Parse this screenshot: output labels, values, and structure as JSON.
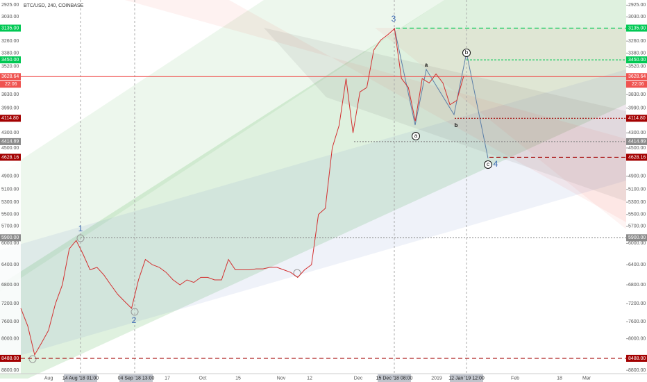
{
  "header": {
    "symbol": "BTC/USD, 240, COINBASE"
  },
  "chart_data": {
    "type": "line",
    "log_scale": true,
    "inverted": true,
    "ylim": [
      2880,
      8890
    ],
    "yticks": [
      {
        "value": 2925,
        "label": "2925.00"
      },
      {
        "value": 3030,
        "label": "3030.00"
      },
      {
        "value": 3260,
        "label": "3260.00"
      },
      {
        "value": 3380,
        "label": "3380.00"
      },
      {
        "value": 3520,
        "label": "3520.00"
      },
      {
        "value": 3830,
        "label": "3830.00"
      },
      {
        "value": 3990,
        "label": "3990.00"
      },
      {
        "value": 4300,
        "label": "4300.00"
      },
      {
        "value": 4500,
        "label": "4500.00"
      },
      {
        "value": 4900,
        "label": "4900.00"
      },
      {
        "value": 5100,
        "label": "5100.00"
      },
      {
        "value": 5300,
        "label": "5300.00"
      },
      {
        "value": 5500,
        "label": "5500.00"
      },
      {
        "value": 5700,
        "label": "5700.00"
      },
      {
        "value": 6000,
        "label": "6000.00"
      },
      {
        "value": 6400,
        "label": "6400.00"
      },
      {
        "value": 6800,
        "label": "6800.00"
      },
      {
        "value": 7200,
        "label": "7200.00"
      },
      {
        "value": 7600,
        "label": "7600.00"
      },
      {
        "value": 8000,
        "label": "8000.00"
      },
      {
        "value": 8800,
        "label": "8800.00"
      }
    ],
    "price_markers": [
      {
        "value": 3135,
        "label": "3135.00",
        "color": "#00c853"
      },
      {
        "value": 3450,
        "label": "3450.00",
        "color": "#00c853"
      },
      {
        "value": 3628.64,
        "label": "3628.64",
        "color": "#ef5350",
        "countdown": "22:06"
      },
      {
        "value": 4114.8,
        "label": "4114.80",
        "color": "#a30000"
      },
      {
        "value": 4414.89,
        "label": "4414.89",
        "color": "#8a8a8a"
      },
      {
        "value": 4628.16,
        "label": "4628.16",
        "color": "#a30000"
      },
      {
        "value": 5900,
        "label": "5900.00",
        "color": "#8a8a8a"
      },
      {
        "value": 8488,
        "label": "8488.00",
        "color": "#a30000"
      }
    ],
    "x_labels": [
      {
        "label": "Aug"
      },
      {
        "label": "14 Aug '18  01:00",
        "highlight": true
      },
      {
        "label": "04 Sep '18  13:00",
        "highlight": true
      },
      {
        "label": "17"
      },
      {
        "label": "Oct"
      },
      {
        "label": "15"
      },
      {
        "label": "Nov"
      },
      {
        "label": "12"
      },
      {
        "label": "Dec"
      },
      {
        "label": "15 Dec '18  08:00",
        "highlight": true
      },
      {
        "label": "2019"
      },
      {
        "label": "12 Jan '19  12:00",
        "highlight": true
      },
      {
        "label": "Feb"
      },
      {
        "label": "18"
      },
      {
        "label": "Mar"
      }
    ],
    "series": [
      {
        "color": "#d32f2f",
        "values": [
          7300,
          7700,
          8400,
          8100,
          7800,
          7200,
          6800,
          6100,
          5950,
          6200,
          6500,
          6450,
          6600,
          6800,
          7000,
          7150,
          7300,
          6700,
          6300,
          6400,
          6450,
          6550,
          6700,
          6800,
          6700,
          6750,
          6650,
          6650,
          6700,
          6700,
          6300,
          6500,
          6500,
          6500,
          6480,
          6480,
          6450,
          6450,
          6500,
          6550,
          6650,
          6500,
          6400,
          5500,
          5400,
          4500,
          4200,
          3650,
          4300,
          3800,
          3750,
          3350,
          3250,
          3200,
          3140,
          3650,
          3750,
          4150,
          3650,
          3700,
          3600,
          3700,
          3950,
          3900,
          3620
        ]
      }
    ],
    "annotations": [
      {
        "text": "1",
        "color": "#3d6ab3"
      },
      {
        "text": "2",
        "color": "#3d6ab3"
      },
      {
        "text": "3",
        "color": "#3d6ab3"
      },
      {
        "text": "4",
        "color": "#3d6ab3"
      },
      {
        "text": "a",
        "color": "#111111"
      },
      {
        "text": "b",
        "color": "#111111"
      },
      {
        "text": "a",
        "color": "#111111",
        "circled": true
      },
      {
        "text": "b",
        "color": "#111111",
        "circled": true
      },
      {
        "text": "c",
        "color": "#111111",
        "circled": true
      }
    ]
  }
}
